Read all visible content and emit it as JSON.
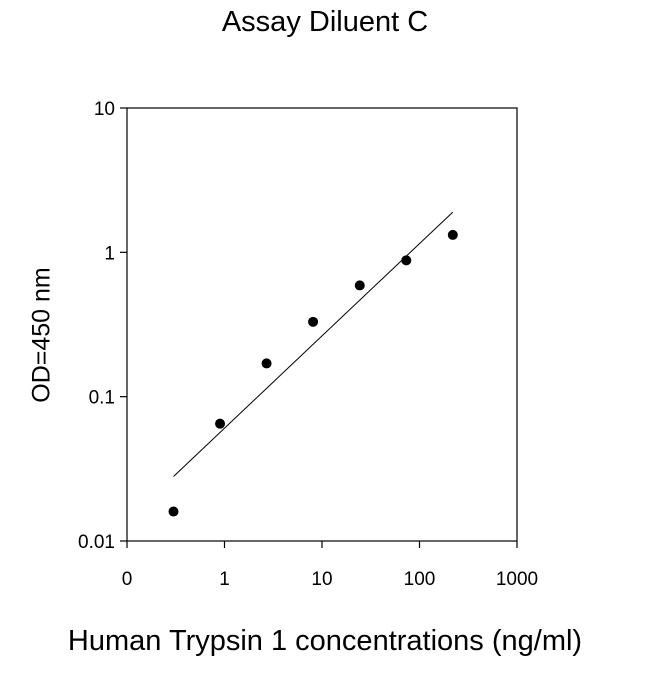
{
  "chart_data": {
    "type": "scatter",
    "title": "Assay Diluent C",
    "xlabel": "Human Trypsin 1 concentrations (ng/ml)",
    "ylabel": "OD=450 nm",
    "x_scale": "log",
    "y_scale": "log",
    "xlim": [
      0.1,
      1000
    ],
    "ylim": [
      0.01,
      10
    ],
    "x_tick_labels": [
      "0",
      "1",
      "10",
      "100",
      "1000"
    ],
    "x_tick_values": [
      0.1,
      1,
      10,
      100,
      1000
    ],
    "y_tick_labels": [
      "0.01",
      "0.1",
      "1",
      "10"
    ],
    "y_tick_values": [
      0.01,
      0.1,
      1,
      10
    ],
    "grid": false,
    "points": [
      {
        "x": 0.3,
        "y": 0.016
      },
      {
        "x": 0.9,
        "y": 0.065
      },
      {
        "x": 2.7,
        "y": 0.17
      },
      {
        "x": 8.1,
        "y": 0.33
      },
      {
        "x": 24.4,
        "y": 0.59
      },
      {
        "x": 73.2,
        "y": 0.88
      },
      {
        "x": 219.6,
        "y": 1.32
      }
    ],
    "fit_line": {
      "x": [
        0.3,
        219.6
      ],
      "y": [
        0.028,
        1.9
      ]
    },
    "colors": {
      "points": "#000000",
      "line": "#000000",
      "axes": "#000000"
    }
  }
}
